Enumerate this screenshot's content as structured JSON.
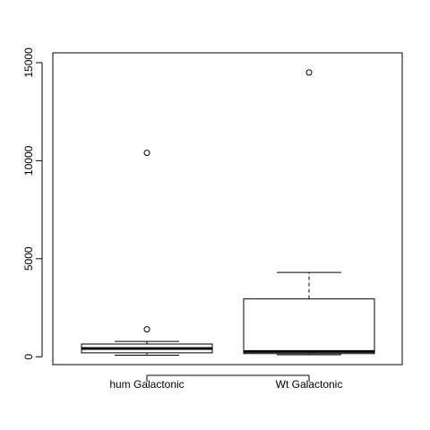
{
  "chart_data": {
    "type": "boxplot",
    "title": "",
    "xlabel": "",
    "ylabel": "",
    "ylim": [
      -400,
      15500
    ],
    "yticks": [
      0,
      5000,
      10000,
      15000
    ],
    "categories": [
      "hum Galactonic",
      "Wt Galactonic"
    ],
    "boxes": [
      {
        "category": "hum Galactonic",
        "whisker_low": 80,
        "q1": 200,
        "median": 420,
        "q3": 650,
        "whisker_high": 780,
        "outliers": [
          1400,
          10400
        ]
      },
      {
        "category": "Wt Galactonic",
        "whisker_low": 100,
        "q1": 160,
        "median": 270,
        "q3": 2950,
        "whisker_high": 4300,
        "outliers": [
          14500
        ]
      }
    ],
    "grid": false,
    "legend": "none"
  }
}
